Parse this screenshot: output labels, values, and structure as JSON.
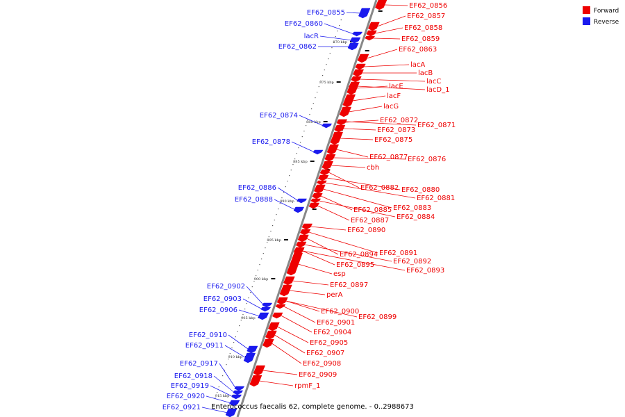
{
  "caption": "Enterococcus faecalis 62, complete genome. - 0..2988673",
  "legend": [
    {
      "label": "Forward",
      "color": "#ee0000"
    },
    {
      "label": "Reverse",
      "color": "#1a1aee"
    }
  ],
  "colors": {
    "forward": "#ee0000",
    "reverse": "#1a1aee",
    "backbone": "#888888",
    "tick": "#111111"
  },
  "ticks": [
    {
      "label": "870 kbp"
    },
    {
      "label": "875 kbp"
    },
    {
      "label": "880 kbp"
    },
    {
      "label": "885 kbp"
    },
    {
      "label": "890 kbp"
    },
    {
      "label": "895 kbp"
    },
    {
      "label": "900 kbp"
    },
    {
      "label": "905 kbp"
    },
    {
      "label": "910 kbp"
    },
    {
      "label": "915 kbp"
    }
  ],
  "reverse_genes": [
    "EF62_0855",
    "EF62_0860",
    "lacR",
    "EF62_0862",
    "EF62_0874",
    "EF62_0878",
    "EF62_0886",
    "EF62_0888",
    "EF62_0902",
    "EF62_0903",
    "EF62_0906",
    "EF62_0910",
    "EF62_0911",
    "EF62_0917",
    "EF62_0918",
    "EF62_0919",
    "EF62_0920",
    "EF62_0921"
  ],
  "forward_genes": [
    "EF62_0856",
    "EF62_0857",
    "EF62_0858",
    "EF62_0859",
    "EF62_0863",
    "lacA",
    "lacB",
    "lacC",
    "lacE",
    "lacD_1",
    "lacF",
    "lacG",
    "EF62_0872",
    "EF62_0871",
    "EF62_0873",
    "EF62_0875",
    "EF62_0877",
    "EF62_0876",
    "cbh",
    "EF62_0882",
    "EF62_0880",
    "EF62_0881",
    "EF62_0883",
    "EF62_0885",
    "EF62_0884",
    "EF62_0887",
    "EF62_0890",
    "EF62_0891",
    "EF62_0894",
    "EF62_0892",
    "EF62_0895",
    "EF62_0893",
    "esp",
    "EF62_0897",
    "perA",
    "EF62_0900",
    "EF62_0899",
    "EF62_0901",
    "EF62_0904",
    "EF62_0905",
    "EF62_0907",
    "EF62_0908",
    "EF62_0909",
    "rpmF_1"
  ]
}
